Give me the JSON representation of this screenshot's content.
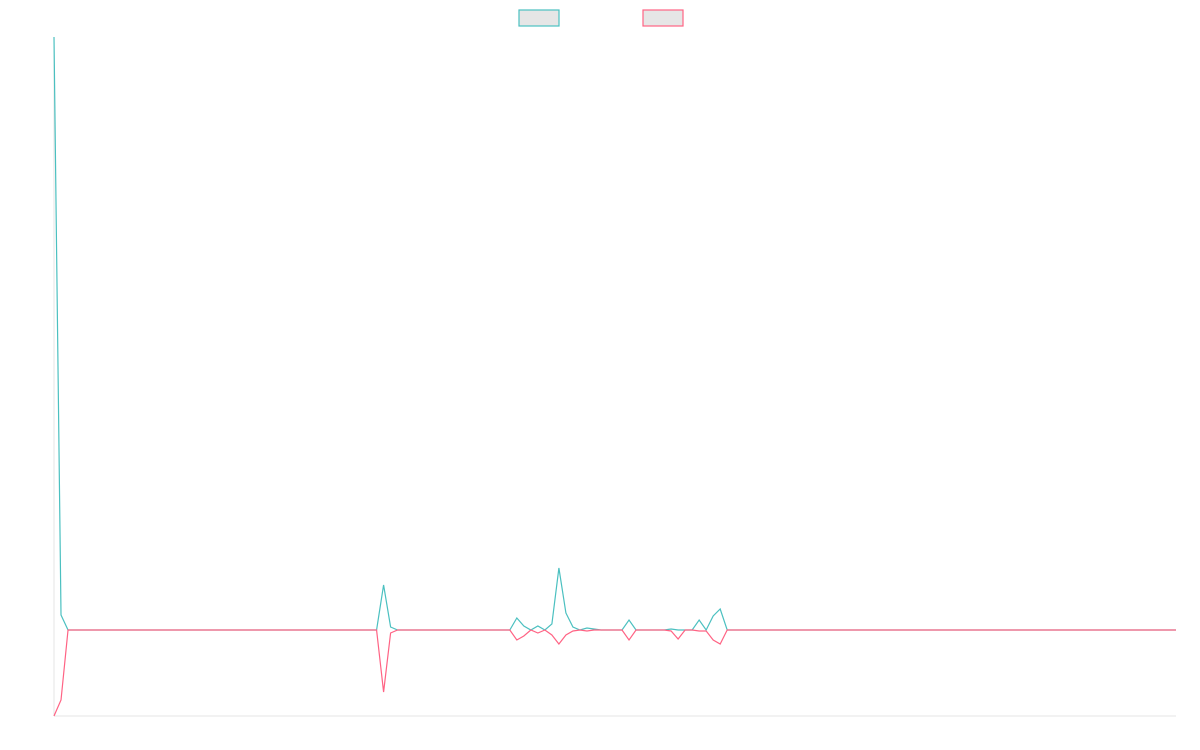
{
  "chart_data": {
    "type": "line",
    "ylim": [
      -86,
      593
    ],
    "legend": "top",
    "series": [
      {
        "color": "#4bc0c0",
        "values": [
          593,
          15,
          0,
          0,
          0,
          0,
          0,
          0,
          0,
          0,
          0,
          0,
          0,
          0,
          0,
          0,
          0,
          0,
          0,
          0,
          0,
          0,
          0,
          0,
          0,
          0,
          0,
          0,
          0,
          0,
          0,
          0,
          0,
          0,
          0,
          0,
          0,
          0,
          0,
          0,
          0,
          0,
          0,
          0,
          0,
          0,
          0,
          45,
          3,
          0,
          0,
          0,
          0,
          0,
          0,
          0,
          0,
          0,
          0,
          0,
          0,
          0,
          0,
          0,
          0,
          0,
          12,
          4,
          0,
          4,
          0,
          6,
          62,
          17,
          3,
          0,
          2,
          1,
          0,
          0,
          0,
          0,
          10,
          0,
          0,
          0,
          0,
          0,
          1,
          0,
          0,
          0,
          10,
          0,
          14,
          21,
          0,
          0,
          0,
          0,
          0,
          0,
          0,
          0,
          0,
          0,
          0,
          0,
          0,
          0,
          0,
          0,
          0,
          0,
          0,
          0,
          0,
          0,
          0,
          0,
          0,
          0,
          0,
          0,
          0,
          0,
          0,
          0,
          0,
          0,
          0,
          0,
          0,
          0,
          0,
          0,
          0,
          0,
          0,
          0,
          0,
          0,
          0,
          0,
          0,
          0,
          0,
          0,
          0,
          0,
          0,
          0,
          0,
          0,
          0,
          0,
          0,
          0,
          0,
          0,
          0
        ]
      },
      {
        "color": "#ff6384",
        "values": [
          -86,
          -70,
          0,
          0,
          0,
          0,
          0,
          0,
          0,
          0,
          0,
          0,
          0,
          0,
          0,
          0,
          0,
          0,
          0,
          0,
          0,
          0,
          0,
          0,
          0,
          0,
          0,
          0,
          0,
          0,
          0,
          0,
          0,
          0,
          0,
          0,
          0,
          0,
          0,
          0,
          0,
          0,
          0,
          0,
          0,
          0,
          0,
          -62,
          -3,
          0,
          0,
          0,
          0,
          0,
          0,
          0,
          0,
          0,
          0,
          0,
          0,
          0,
          0,
          0,
          0,
          0,
          -10,
          -6,
          0,
          -3,
          0,
          -5,
          -14,
          -5,
          -1,
          0,
          -1,
          0,
          0,
          0,
          0,
          0,
          -10,
          0,
          0,
          0,
          0,
          0,
          -1,
          -9,
          0,
          0,
          -1,
          -1,
          -10,
          -14,
          0,
          0,
          0,
          0,
          0,
          0,
          0,
          0,
          0,
          0,
          0,
          0,
          0,
          0,
          0,
          0,
          0,
          0,
          0,
          0,
          0,
          0,
          0,
          0,
          0,
          0,
          0,
          0,
          0,
          0,
          0,
          0,
          0,
          0,
          0,
          0,
          0,
          0,
          0,
          0,
          0,
          0,
          0,
          0,
          0,
          0,
          0,
          0,
          0,
          0,
          0,
          0,
          0,
          0,
          0,
          0,
          0,
          0,
          0,
          0,
          0,
          0,
          0,
          0,
          0
        ]
      }
    ]
  }
}
